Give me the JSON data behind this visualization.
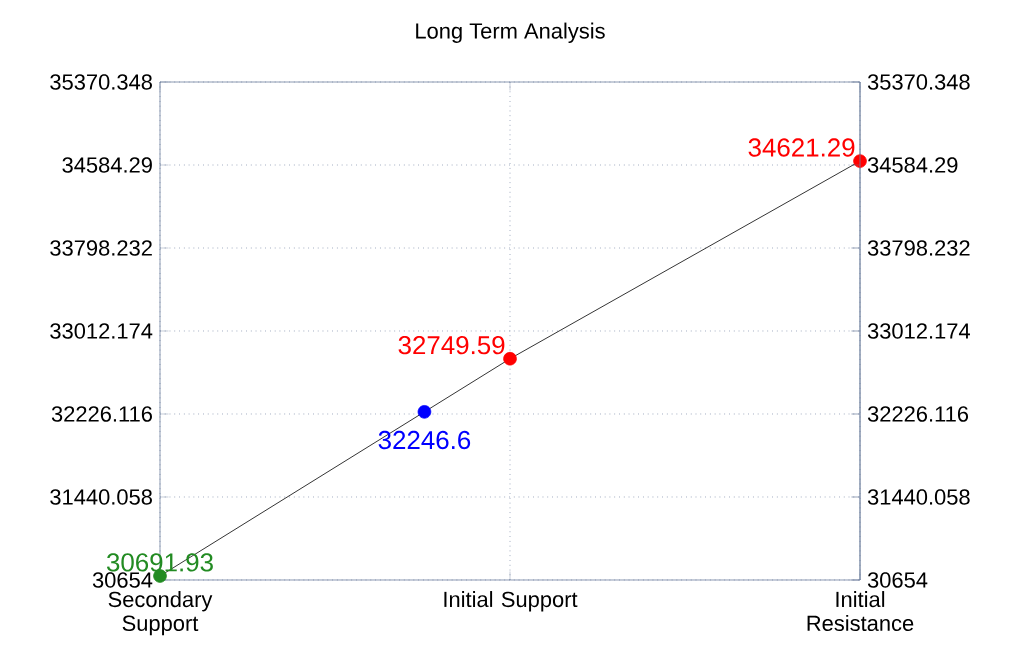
{
  "chart_data": {
    "type": "line",
    "title": "Long Term Analysis",
    "categories": [
      "Secondary Support",
      "Initial Support",
      "Initial Resistance"
    ],
    "series": [
      {
        "color": "#000000",
        "values": [
          30691.93,
          32749.59,
          34621.29
        ]
      },
      {
        "type": "scatter",
        "values": [
          30691.93,
          32749.59,
          34621.29
        ],
        "colors": [
          "#228b22",
          "#ff0000",
          "#ff0000"
        ],
        "value_labels": [
          "30691.93",
          "32749.59",
          "34621.29"
        ]
      }
    ],
    "annotations": [
      {
        "text": "32246.6",
        "y": 32246.6
      }
    ],
    "ylim": [
      30654,
      35370.348
    ],
    "yticks": [
      30654,
      31440.058,
      32226.116,
      33012.174,
      33798.232,
      34584.29,
      35370.348
    ],
    "y2lim": [
      30654,
      35370.348
    ],
    "y2ticks": [
      30654,
      31440.058,
      32226.116,
      33012.174,
      33798.232,
      34584.29,
      35370.348
    ],
    "grid": true
  }
}
